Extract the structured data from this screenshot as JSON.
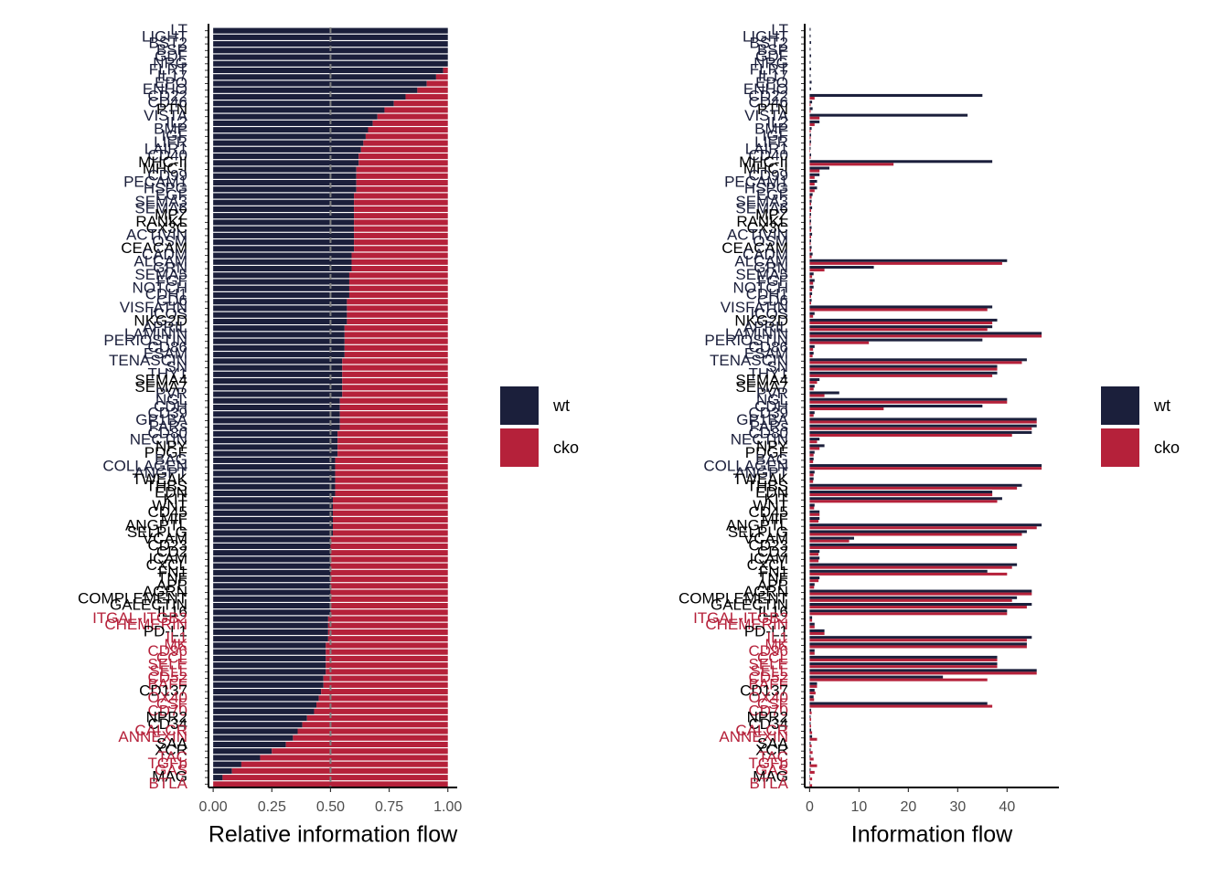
{
  "chart_data": [
    {
      "type": "bar",
      "orientation": "horizontal",
      "stacked": true,
      "x_label": "Relative information flow",
      "categories": [
        "LT",
        "LIGHT",
        "BST2",
        "BSP",
        "GDF",
        "NRG",
        "FLRT",
        "IL17",
        "EPO",
        "ENHO",
        "CD22",
        "CD46",
        "PTN",
        "VISTA",
        "IL2",
        "BMP",
        "IGF",
        "LIFR",
        "LAIR1",
        "CD40",
        "MHC-II",
        "MHC-I",
        "CD99",
        "PECAM1",
        "HSPG",
        "EGF",
        "SEMA3",
        "SEMA6",
        "MPZ",
        "RANKL",
        "CX3C",
        "ACTIVIN",
        "OSM",
        "CEACAM",
        "CADM",
        "ALCAM",
        "GRN",
        "SEMA5",
        "FGF",
        "NOTCH",
        "CDH1",
        "CD6",
        "VISFATIN",
        "ICOS",
        "NKG2D",
        "APRIL",
        "LAMININ",
        "PERIOSTIN",
        "CD86",
        "ESAM",
        "TENASCIN",
        "SN",
        "THY1",
        "SEMA4",
        "SEMA7",
        "PVR",
        "NGL",
        "CDH",
        "CD39",
        "GP1BA",
        "PARs",
        "CD80",
        "NECTIN",
        "NPY",
        "PDGF",
        "BAG",
        "COLLAGEN",
        "ANGPT",
        "TWEAK",
        "THBS",
        "EDN",
        "KIT",
        "WNT",
        "CD45",
        "MIF",
        "ANGPTL",
        "SELPLG",
        "VCAM",
        "CD23",
        "CD2",
        "ICAM",
        "CXCL",
        "FN1",
        "TNF",
        "APP",
        "AGRN",
        "COMPLEMENT",
        "GALECTIN",
        "IL16",
        "ITGAL-ITGB2",
        "CHEMERIN",
        "PD-L1",
        "IL1",
        "MK",
        "CD96",
        "CCL",
        "SELE",
        "SELL",
        "CD52",
        "BAFF",
        "CD137",
        "OX40",
        "CSF",
        "CD70",
        "NPR2",
        "CD34",
        "CALCR",
        "ANNEXIN",
        "SAA",
        "XCR",
        "TAC",
        "TGFb",
        "GAS",
        "MAG",
        "BTLA"
      ],
      "label_colors": [
        "#1b1f3b",
        "#1b1f3b",
        "#1b1f3b",
        "#1b1f3b",
        "#1b1f3b",
        "#1b1f3b",
        "#1b1f3b",
        "#1b1f3b",
        "#1b1f3b",
        "#1b1f3b",
        "#1b1f3b",
        "#1b1f3b",
        "#000000",
        "#1b1f3b",
        "#1b1f3b",
        "#1b1f3b",
        "#1b1f3b",
        "#1b1f3b",
        "#1b1f3b",
        "#1b1f3b",
        "#000000",
        "#000000",
        "#1b1f3b",
        "#1b1f3b",
        "#1b1f3b",
        "#1b1f3b",
        "#1b1f3b",
        "#1b1f3b",
        "#000000",
        "#000000",
        "#000000",
        "#1b1f3b",
        "#1b1f3b",
        "#000000",
        "#1b1f3b",
        "#1b1f3b",
        "#1b1f3b",
        "#1b1f3b",
        "#1b1f3b",
        "#1b1f3b",
        "#1b1f3b",
        "#1b1f3b",
        "#1b1f3b",
        "#1b1f3b",
        "#000000",
        "#1b1f3b",
        "#1b1f3b",
        "#1b1f3b",
        "#1b1f3b",
        "#1b1f3b",
        "#1b1f3b",
        "#1b1f3b",
        "#1b1f3b",
        "#000000",
        "#000000",
        "#1b1f3b",
        "#1b1f3b",
        "#1b1f3b",
        "#1b1f3b",
        "#1b1f3b",
        "#1b1f3b",
        "#1b1f3b",
        "#1b1f3b",
        "#000000",
        "#000000",
        "#1b1f3b",
        "#1b1f3b",
        "#1b1f3b",
        "#000000",
        "#000000",
        "#000000",
        "#000000",
        "#000000",
        "#000000",
        "#000000",
        "#000000",
        "#000000",
        "#000000",
        "#000000",
        "#000000",
        "#000000",
        "#000000",
        "#000000",
        "#000000",
        "#000000",
        "#000000",
        "#000000",
        "#000000",
        "#000000",
        "#b5213a",
        "#b5213a",
        "#000000",
        "#b5213a",
        "#b5213a",
        "#b5213a",
        "#b5213a",
        "#b5213a",
        "#b5213a",
        "#b5213a",
        "#b5213a",
        "#000000",
        "#b5213a",
        "#b5213a",
        "#b5213a",
        "#000000",
        "#000000",
        "#b5213a",
        "#b5213a",
        "#000000",
        "#000000",
        "#b5213a",
        "#b5213a",
        "#b5213a",
        "#000000",
        "#b5213a"
      ],
      "series": [
        {
          "name": "wt",
          "color": "#1b1f3b",
          "values": [
            1,
            1,
            1,
            1,
            1,
            1,
            0.98,
            0.95,
            0.91,
            0.87,
            0.82,
            0.77,
            0.73,
            0.7,
            0.68,
            0.66,
            0.65,
            0.64,
            0.63,
            0.62,
            0.62,
            0.61,
            0.61,
            0.61,
            0.61,
            0.6,
            0.6,
            0.6,
            0.6,
            0.6,
            0.6,
            0.6,
            0.6,
            0.6,
            0.59,
            0.59,
            0.59,
            0.58,
            0.58,
            0.58,
            0.58,
            0.57,
            0.57,
            0.57,
            0.57,
            0.56,
            0.56,
            0.56,
            0.56,
            0.56,
            0.55,
            0.55,
            0.55,
            0.55,
            0.55,
            0.55,
            0.54,
            0.54,
            0.54,
            0.54,
            0.54,
            0.53,
            0.53,
            0.53,
            0.53,
            0.52,
            0.52,
            0.52,
            0.52,
            0.52,
            0.52,
            0.51,
            0.51,
            0.51,
            0.51,
            0.51,
            0.51,
            0.5,
            0.5,
            0.5,
            0.5,
            0.5,
            0.5,
            0.5,
            0.5,
            0.5,
            0.5,
            0.5,
            0.5,
            0.49,
            0.49,
            0.49,
            0.49,
            0.48,
            0.48,
            0.48,
            0.48,
            0.48,
            0.47,
            0.47,
            0.46,
            0.45,
            0.44,
            0.43,
            0.4,
            0.38,
            0.36,
            0.34,
            0.31,
            0.25,
            0.2,
            0.12,
            0.08,
            0.04,
            0
          ]
        },
        {
          "name": "cko",
          "color": "#b5213a",
          "values": [
            0,
            0,
            0,
            0,
            0,
            0,
            0.02,
            0.05,
            0.09,
            0.13,
            0.18,
            0.23,
            0.27,
            0.3,
            0.32,
            0.34,
            0.35,
            0.36,
            0.37,
            0.38,
            0.38,
            0.39,
            0.39,
            0.39,
            0.39,
            0.4,
            0.4,
            0.4,
            0.4,
            0.4,
            0.4,
            0.4,
            0.4,
            0.4,
            0.41,
            0.41,
            0.41,
            0.42,
            0.42,
            0.42,
            0.42,
            0.43,
            0.43,
            0.43,
            0.43,
            0.44,
            0.44,
            0.44,
            0.44,
            0.44,
            0.45,
            0.45,
            0.45,
            0.45,
            0.45,
            0.45,
            0.46,
            0.46,
            0.46,
            0.46,
            0.46,
            0.47,
            0.47,
            0.47,
            0.47,
            0.48,
            0.48,
            0.48,
            0.48,
            0.48,
            0.48,
            0.49,
            0.49,
            0.49,
            0.49,
            0.49,
            0.49,
            0.5,
            0.5,
            0.5,
            0.5,
            0.5,
            0.5,
            0.5,
            0.5,
            0.5,
            0.5,
            0.5,
            0.5,
            0.51,
            0.51,
            0.51,
            0.51,
            0.52,
            0.52,
            0.52,
            0.52,
            0.52,
            0.53,
            0.53,
            0.54,
            0.55,
            0.56,
            0.57,
            0.6,
            0.62,
            0.64,
            0.66,
            0.69,
            0.75,
            0.8,
            0.88,
            0.92,
            0.96,
            1
          ]
        }
      ],
      "reference_line": 0.5,
      "xlim": [
        -0.02,
        1.04
      ],
      "xticks": [
        {
          "value": 0,
          "label": "0.00"
        },
        {
          "value": 0.25,
          "label": "0.25"
        },
        {
          "value": 0.5,
          "label": "0.50"
        },
        {
          "value": 0.75,
          "label": "0.75"
        },
        {
          "value": 1,
          "label": "1.00"
        }
      ],
      "legend": "right"
    },
    {
      "type": "bar",
      "orientation": "horizontal",
      "stacked": false,
      "x_label": "Information flow",
      "categories": [
        "LT",
        "LIGHT",
        "BST2",
        "BSP",
        "GDF",
        "NRG",
        "FLRT",
        "IL17",
        "EPO",
        "ENHO",
        "CD22",
        "CD46",
        "PTN",
        "VISTA",
        "IL2",
        "BMP",
        "IGF",
        "LIFR",
        "LAIR1",
        "CD40",
        "MHC-II",
        "MHC-I",
        "CD99",
        "PECAM1",
        "HSPG",
        "EGF",
        "SEMA3",
        "SEMA6",
        "MPZ",
        "RANKL",
        "CX3C",
        "ACTIVIN",
        "OSM",
        "CEACAM",
        "CADM",
        "ALCAM",
        "GRN",
        "SEMA5",
        "FGF",
        "NOTCH",
        "CDH1",
        "CD6",
        "VISFATIN",
        "ICOS",
        "NKG2D",
        "APRIL",
        "LAMININ",
        "PERIOSTIN",
        "CD86",
        "ESAM",
        "TENASCIN",
        "SN",
        "THY1",
        "SEMA4",
        "SEMA7",
        "PVR",
        "NGL",
        "CDH",
        "CD39",
        "GP1BA",
        "PARs",
        "CD80",
        "NECTIN",
        "NPY",
        "PDGF",
        "BAG",
        "COLLAGEN",
        "ANGPT",
        "TWEAK",
        "THBS",
        "EDN",
        "KIT",
        "WNT",
        "CD45",
        "MIF",
        "ANGPTL",
        "SELPLG",
        "VCAM",
        "CD23",
        "CD2",
        "ICAM",
        "CXCL",
        "FN1",
        "TNF",
        "APP",
        "AGRN",
        "COMPLEMENT",
        "GALECTIN",
        "IL16",
        "ITGAL-ITGB2",
        "CHEMERIN",
        "PD-L1",
        "IL1",
        "MK",
        "CD96",
        "CCL",
        "SELE",
        "SELL",
        "CD52",
        "BAFF",
        "CD137",
        "OX40",
        "CSF",
        "CD70",
        "NPR2",
        "CD34",
        "CALCR",
        "ANNEXIN",
        "SAA",
        "XCR",
        "TAC",
        "TGFb",
        "GAS",
        "MAG",
        "BTLA"
      ],
      "label_colors": [
        "#1b1f3b",
        "#1b1f3b",
        "#1b1f3b",
        "#1b1f3b",
        "#1b1f3b",
        "#1b1f3b",
        "#1b1f3b",
        "#1b1f3b",
        "#1b1f3b",
        "#1b1f3b",
        "#1b1f3b",
        "#1b1f3b",
        "#000000",
        "#1b1f3b",
        "#1b1f3b",
        "#1b1f3b",
        "#1b1f3b",
        "#1b1f3b",
        "#1b1f3b",
        "#1b1f3b",
        "#000000",
        "#000000",
        "#1b1f3b",
        "#1b1f3b",
        "#1b1f3b",
        "#1b1f3b",
        "#1b1f3b",
        "#1b1f3b",
        "#000000",
        "#000000",
        "#000000",
        "#1b1f3b",
        "#1b1f3b",
        "#000000",
        "#1b1f3b",
        "#1b1f3b",
        "#1b1f3b",
        "#1b1f3b",
        "#1b1f3b",
        "#1b1f3b",
        "#1b1f3b",
        "#1b1f3b",
        "#1b1f3b",
        "#1b1f3b",
        "#000000",
        "#1b1f3b",
        "#1b1f3b",
        "#1b1f3b",
        "#1b1f3b",
        "#1b1f3b",
        "#1b1f3b",
        "#1b1f3b",
        "#1b1f3b",
        "#000000",
        "#000000",
        "#1b1f3b",
        "#1b1f3b",
        "#1b1f3b",
        "#1b1f3b",
        "#1b1f3b",
        "#1b1f3b",
        "#1b1f3b",
        "#1b1f3b",
        "#000000",
        "#000000",
        "#1b1f3b",
        "#1b1f3b",
        "#1b1f3b",
        "#000000",
        "#000000",
        "#000000",
        "#000000",
        "#000000",
        "#000000",
        "#000000",
        "#000000",
        "#000000",
        "#000000",
        "#000000",
        "#000000",
        "#000000",
        "#000000",
        "#000000",
        "#000000",
        "#000000",
        "#000000",
        "#000000",
        "#000000",
        "#000000",
        "#b5213a",
        "#b5213a",
        "#000000",
        "#b5213a",
        "#b5213a",
        "#b5213a",
        "#b5213a",
        "#b5213a",
        "#b5213a",
        "#b5213a",
        "#b5213a",
        "#000000",
        "#b5213a",
        "#b5213a",
        "#b5213a",
        "#000000",
        "#000000",
        "#b5213a",
        "#b5213a",
        "#000000",
        "#000000",
        "#b5213a",
        "#b5213a",
        "#b5213a",
        "#000000",
        "#b5213a"
      ],
      "series": [
        {
          "name": "wt",
          "color": "#1b1f3b",
          "values": [
            0.2,
            0.2,
            0.3,
            0.2,
            0.3,
            0.2,
            0.3,
            0.2,
            0.4,
            0.3,
            35,
            0.5,
            0.6,
            32,
            2,
            0.4,
            0.3,
            0.3,
            0.2,
            0.3,
            37,
            4,
            2,
            1.5,
            1.5,
            0.6,
            0.4,
            0.5,
            0.3,
            0.3,
            0.4,
            0.5,
            0.3,
            0.4,
            0.6,
            40,
            13,
            0.8,
            1,
            0.8,
            0.5,
            0.4,
            37,
            1,
            38,
            37,
            47,
            35,
            1,
            0.8,
            44,
            38,
            38,
            2,
            1,
            6,
            40,
            35,
            1,
            46,
            46,
            45,
            2,
            3,
            1,
            0.8,
            47,
            1,
            0.8,
            43,
            37,
            39,
            1,
            2,
            2,
            47,
            44,
            9,
            42,
            2,
            2,
            42,
            36,
            2,
            1,
            45,
            42,
            45,
            40,
            0.5,
            1,
            3,
            45,
            44,
            1,
            38,
            38,
            46,
            27,
            1.5,
            1,
            0.8,
            36,
            0.3,
            0.2,
            0.2,
            0.3,
            0.5,
            0.2,
            0.2,
            0.2,
            0.3,
            0.2,
            0.1,
            0.1
          ]
        },
        {
          "name": "cko",
          "color": "#b5213a",
          "values": [
            0,
            0,
            0,
            0,
            0,
            0,
            0,
            0,
            0,
            0,
            1,
            0.2,
            0.2,
            2,
            1,
            0.2,
            0.2,
            0.2,
            0.1,
            0.2,
            17,
            2,
            1,
            1,
            1,
            0.4,
            0.3,
            0.3,
            0.2,
            0.2,
            0.3,
            0.3,
            0.2,
            0.3,
            0.4,
            39,
            3,
            0.5,
            0.7,
            0.5,
            0.3,
            0.3,
            36,
            0.7,
            37,
            36,
            47,
            12,
            0.7,
            0.6,
            43,
            38,
            37,
            1.5,
            0.8,
            3,
            40,
            15,
            0.8,
            46,
            45,
            41,
            1.5,
            2,
            0.8,
            0.7,
            47,
            0.8,
            0.7,
            42,
            37,
            38,
            0.9,
            2,
            1.8,
            46,
            43,
            8,
            42,
            1.8,
            1.8,
            41,
            40,
            1.8,
            0.9,
            45,
            41,
            44,
            40,
            0.5,
            1,
            3,
            44,
            44,
            1,
            38,
            38,
            46,
            36,
            1.5,
            1.2,
            0.9,
            37,
            0.4,
            0.3,
            0.3,
            0.5,
            1.5,
            0.4,
            0.6,
            0.8,
            1.5,
            1,
            0.5,
            0.5
          ]
        }
      ],
      "xlim": [
        -1,
        50.5
      ],
      "xticks": [
        0,
        10,
        20,
        30,
        40
      ],
      "legend": "right"
    }
  ]
}
